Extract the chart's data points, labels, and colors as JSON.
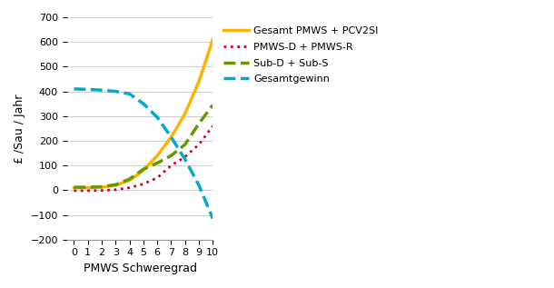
{
  "x": [
    0,
    1,
    2,
    3,
    4,
    5,
    6,
    7,
    8,
    9,
    10
  ],
  "gesamt": [
    10,
    10,
    12,
    20,
    40,
    80,
    140,
    215,
    310,
    440,
    610
  ],
  "pmws_d_r": [
    -2,
    -2,
    -1,
    2,
    10,
    25,
    50,
    100,
    135,
    185,
    260
  ],
  "sub_d_s": [
    12,
    12,
    14,
    22,
    45,
    85,
    110,
    140,
    185,
    270,
    345
  ],
  "gesamtgewinn": [
    410,
    408,
    405,
    400,
    390,
    350,
    295,
    215,
    125,
    20,
    -115
  ],
  "gesamt_color": "#FFB300",
  "pmws_color": "#CC0033",
  "sub_color": "#669900",
  "gewinn_color": "#00AACC",
  "ylabel": "£ /Sau / Jahr",
  "xlabel": "PMWS Schweregrad",
  "ylim": [
    -200,
    700
  ],
  "xlim": [
    -0.5,
    10
  ],
  "yticks": [
    -200,
    -100,
    0,
    100,
    200,
    300,
    400,
    500,
    600,
    700
  ],
  "xticks": [
    0,
    1,
    2,
    3,
    4,
    5,
    6,
    7,
    8,
    9,
    10
  ],
  "legend_gesamt": "Gesamt PMWS + PCV2SI",
  "legend_pmws": "PMWS-D + PMWS-R",
  "legend_sub": "Sub-D + Sub-S",
  "legend_gewinn": "Gesamtgewinn",
  "fig_width": 6.1,
  "fig_height": 3.17,
  "dpi": 100
}
